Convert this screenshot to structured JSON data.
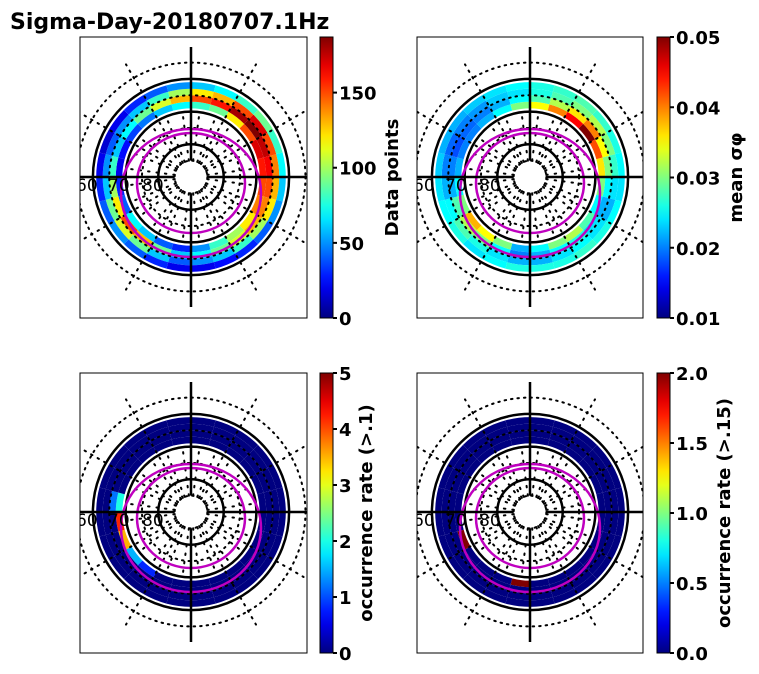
{
  "figure": {
    "title": "Sigma-Day-20180707.1Hz"
  },
  "chart_data": [
    {
      "type": "heatmap",
      "projection": "polar (magnetic latitude vs MLT)",
      "panel": "top-left",
      "title": "",
      "radial_labels": [
        "60",
        "70",
        "80"
      ],
      "rings_mlat": [
        68,
        66,
        64,
        62
      ],
      "sectors_mlt_hours": 24,
      "colorbar": {
        "label": "Data points",
        "ticks": [
          "0",
          "50",
          "100",
          "150"
        ],
        "range": [
          0,
          187
        ],
        "cmap": "jet"
      },
      "values": [
        [
          30,
          40,
          60,
          70,
          40,
          30,
          20,
          25,
          35,
          45,
          60,
          70,
          80,
          90,
          120,
          150,
          170,
          160,
          150,
          140,
          120,
          100,
          80,
          50
        ],
        [
          60,
          90,
          130,
          150,
          120,
          100,
          80,
          60,
          70,
          90,
          110,
          130,
          150,
          160,
          180,
          187,
          175,
          165,
          150,
          140,
          130,
          110,
          90,
          70
        ],
        [
          40,
          60,
          90,
          110,
          90,
          60,
          50,
          40,
          50,
          60,
          80,
          100,
          120,
          130,
          150,
          170,
          150,
          140,
          130,
          120,
          100,
          80,
          60,
          50
        ],
        [
          20,
          30,
          40,
          50,
          40,
          30,
          20,
          15,
          20,
          30,
          40,
          50,
          60,
          70,
          80,
          90,
          80,
          70,
          60,
          50,
          40,
          30,
          25,
          20
        ]
      ]
    },
    {
      "type": "heatmap",
      "projection": "polar (magnetic latitude vs MLT)",
      "panel": "top-right",
      "title": "",
      "radial_labels": [
        "60",
        "70",
        "80"
      ],
      "rings_mlat": [
        68,
        66,
        64,
        62
      ],
      "sectors_mlt_hours": 24,
      "colorbar": {
        "label": "mean σφ",
        "ticks": [
          "0.01",
          "0.02",
          "0.03",
          "0.04",
          "0.05"
        ],
        "range": [
          0.01,
          0.05
        ],
        "cmap": "jet"
      },
      "values": [
        [
          0.022,
          0.03,
          0.035,
          0.038,
          0.03,
          0.025,
          0.022,
          0.02,
          0.02,
          0.022,
          0.025,
          0.03,
          0.035,
          0.04,
          0.045,
          0.05,
          0.042,
          0.036,
          0.03,
          0.025,
          0.028,
          0.032,
          0.03,
          0.025
        ],
        [
          0.02,
          0.025,
          0.03,
          0.032,
          0.028,
          0.022,
          0.02,
          0.018,
          0.019,
          0.02,
          0.022,
          0.025,
          0.028,
          0.032,
          0.036,
          0.04,
          0.035,
          0.03,
          0.025,
          0.022,
          0.024,
          0.026,
          0.025,
          0.022
        ],
        [
          0.022,
          0.024,
          0.026,
          0.028,
          0.025,
          0.022,
          0.02,
          0.019,
          0.02,
          0.021,
          0.023,
          0.024,
          0.026,
          0.028,
          0.03,
          0.032,
          0.03,
          0.027,
          0.024,
          0.022,
          0.024,
          0.025,
          0.024,
          0.022
        ],
        [
          0.026,
          0.025,
          0.024,
          0.026,
          0.025,
          0.024,
          0.023,
          0.022,
          0.022,
          0.023,
          0.024,
          0.025,
          0.026,
          0.027,
          0.028,
          0.027,
          0.026,
          0.025,
          0.024,
          0.025,
          0.026,
          0.027,
          0.026,
          0.026
        ]
      ]
    },
    {
      "type": "heatmap",
      "projection": "polar (magnetic latitude vs MLT)",
      "panel": "bottom-left",
      "title": "",
      "radial_labels": [
        "60",
        "70",
        "80"
      ],
      "rings_mlat": [
        68,
        66,
        64,
        62
      ],
      "sectors_mlt_hours": 24,
      "colorbar": {
        "label": "occurrence rate (>.1)",
        "ticks": [
          "0",
          "1",
          "2",
          "3",
          "4",
          "5"
        ],
        "range": [
          0,
          5
        ],
        "cmap": "jet"
      },
      "values": [
        [
          0,
          0,
          0.8,
          1.5,
          3.5,
          4.2,
          2.0,
          0,
          0,
          0,
          0,
          0,
          0,
          0,
          0,
          0,
          0,
          0,
          0,
          0,
          0,
          0,
          0,
          0
        ],
        [
          0,
          0,
          0,
          0,
          0,
          0,
          1.2,
          0,
          0,
          0,
          0,
          0,
          0,
          0,
          0,
          0,
          0,
          0,
          0,
          0,
          0,
          0,
          0,
          0
        ],
        [
          0,
          0,
          0,
          0,
          0,
          0,
          0,
          0,
          0,
          0,
          0,
          0,
          0,
          0,
          0,
          0,
          0,
          0,
          0,
          0,
          0,
          0,
          0,
          0
        ],
        [
          0,
          0,
          0,
          0,
          0,
          0,
          0,
          0,
          0,
          0,
          0,
          0,
          0,
          0,
          0,
          0,
          0,
          0,
          0,
          0,
          0,
          0,
          0,
          0
        ]
      ]
    },
    {
      "type": "heatmap",
      "projection": "polar (magnetic latitude vs MLT)",
      "panel": "bottom-right",
      "title": "",
      "radial_labels": [
        "60",
        "70",
        "80"
      ],
      "rings_mlat": [
        68,
        66,
        64,
        62
      ],
      "sectors_mlt_hours": 24,
      "colorbar": {
        "label": "occurrence rate (>.15)",
        "ticks": [
          "0.0",
          "0.5",
          "1.0",
          "1.5",
          "2.0"
        ],
        "range": [
          0,
          2
        ],
        "cmap": "jet"
      },
      "values": [
        [
          2.0,
          0,
          0,
          0,
          2.0,
          0,
          0,
          0,
          0,
          0,
          0,
          0,
          0,
          0,
          0,
          0,
          0,
          0,
          0,
          0,
          0,
          0,
          0,
          0
        ],
        [
          0,
          0,
          0,
          0,
          0,
          0,
          0,
          0,
          0,
          0,
          0,
          0,
          0,
          0,
          0,
          0,
          0,
          0,
          0,
          0,
          0,
          0,
          0,
          0
        ],
        [
          0,
          0,
          0,
          0,
          0,
          0,
          0,
          0,
          0,
          0,
          0,
          0,
          0,
          0,
          0,
          0,
          0,
          0,
          0,
          0,
          0,
          0,
          0,
          0
        ],
        [
          0,
          0,
          0,
          0,
          0,
          0,
          0,
          0,
          0,
          0,
          0,
          0,
          0,
          0,
          0,
          0,
          0,
          0,
          0,
          0,
          0,
          0,
          0,
          0
        ]
      ]
    }
  ],
  "colors": {
    "grid": "#000000",
    "oval": "#bf00bf",
    "background": "#ffffff"
  }
}
